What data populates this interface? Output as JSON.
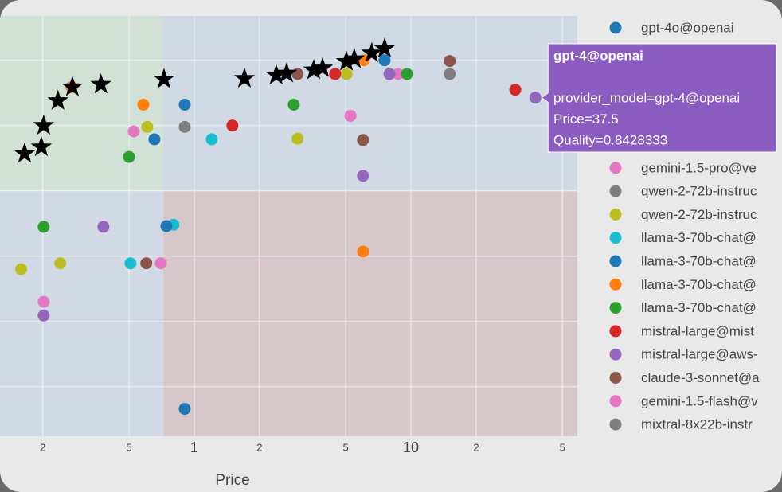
{
  "chart_data": {
    "type": "scatter",
    "x_label": "Price",
    "xscale": "log",
    "xlim": [
      0.127,
      58.6
    ],
    "ylim": [
      0.324,
      0.968
    ],
    "xticks": [
      {
        "value": 0.2,
        "label": "2"
      },
      {
        "value": 0.5,
        "label": "5"
      },
      1,
      2,
      5,
      10,
      {
        "value": 20,
        "label": "2"
      },
      {
        "value": 50,
        "label": "5"
      }
    ],
    "yticks": [
      0.4,
      0.5,
      0.6,
      0.7,
      0.8,
      0.9
    ],
    "grid": true,
    "price_threshold": 0.72,
    "quality_threshold": 0.7,
    "series": [
      {
        "name": "gpt-4o@openai",
        "color": "#1f77b4",
        "x": [
          7.56
        ],
        "values": [
          0.9
        ]
      },
      {
        "name": "gemini-1.5-pro@ve",
        "color": "#e377c2",
        "x": [
          5.26,
          8.73
        ],
        "values": [
          0.815,
          0.879
        ]
      },
      {
        "name": "qwen-2-72b-instruc",
        "color": "#7f7f7f",
        "x": [
          0.904
        ],
        "values": [
          0.798
        ]
      },
      {
        "name": "qwen-2-72b-instruc",
        "color": "#bcbd22",
        "x": [
          0.607,
          3.0,
          0.159,
          0.241,
          5.04
        ],
        "values": [
          0.798,
          0.78,
          0.58,
          0.589,
          0.879
        ]
      },
      {
        "name": "llama-3-70b-chat@",
        "color": "#17becf",
        "x": [
          1.205,
          0.802,
          0.508
        ],
        "values": [
          0.779,
          0.648,
          0.589
        ]
      },
      {
        "name": "llama-3-70b-chat@",
        "color": "#1f77b4",
        "x": [
          0.904,
          0.655,
          0.904,
          0.744
        ],
        "values": [
          0.832,
          0.779,
          0.366,
          0.646
        ]
      },
      {
        "name": "llama-3-70b-chat@",
        "color": "#ff7f0e",
        "x": [
          0.272,
          0.582,
          6.07,
          6.01
        ],
        "values": [
          0.859,
          0.832,
          0.9,
          0.607
        ]
      },
      {
        "name": "llama-3-70b-chat@",
        "color": "#2ca02c",
        "x": [
          0.5,
          0.202,
          2.88,
          9.59
        ],
        "values": [
          0.752,
          0.645,
          0.832,
          0.879
        ]
      },
      {
        "name": "mistral-large@mist",
        "color": "#d62728",
        "x": [
          1.5,
          4.47,
          30.3
        ],
        "values": [
          0.8,
          0.879,
          0.855
        ]
      },
      {
        "name": "mistral-large@aws-",
        "color": "#9467bd",
        "x": [
          0.381,
          0.202,
          6.01,
          7.96
        ],
        "values": [
          0.645,
          0.509,
          0.723,
          0.879
        ]
      },
      {
        "name": "claude-3-sonnet@a",
        "color": "#8c564b",
        "x": [
          0.601,
          3.0,
          6.01,
          15.1
        ],
        "values": [
          0.589,
          0.879,
          0.778,
          0.899
        ]
      },
      {
        "name": "gemini-1.5-flash@v",
        "color": "#e377c2",
        "x": [
          0.526,
          0.202,
          0.701
        ],
        "values": [
          0.791,
          0.53,
          0.589
        ]
      },
      {
        "name": "mixtral-8x22b-instr",
        "color": "#7f7f7f",
        "x": [
          15.1
        ],
        "values": [
          0.879
        ]
      }
    ],
    "frontier": {
      "color": "#000000",
      "x": [
        0.165,
        0.197,
        0.202,
        0.235,
        0.274,
        0.371,
        0.725,
        1.706,
        2.39,
        2.67,
        3.56,
        3.91,
        5.04,
        5.48,
        6.6,
        7.56
      ],
      "values": [
        0.757,
        0.767,
        0.8,
        0.838,
        0.859,
        0.863,
        0.871,
        0.872,
        0.877,
        0.88,
        0.885,
        0.888,
        0.898,
        0.902,
        0.911,
        0.918
      ]
    },
    "hover": {
      "color": "#9467bd",
      "x": 37.5,
      "y": 0.8428333,
      "title": "gpt-4@openai",
      "lines": [
        "provider_model=gpt-4@openai",
        "Price=37.5",
        "Quality=0.8428333"
      ]
    }
  }
}
